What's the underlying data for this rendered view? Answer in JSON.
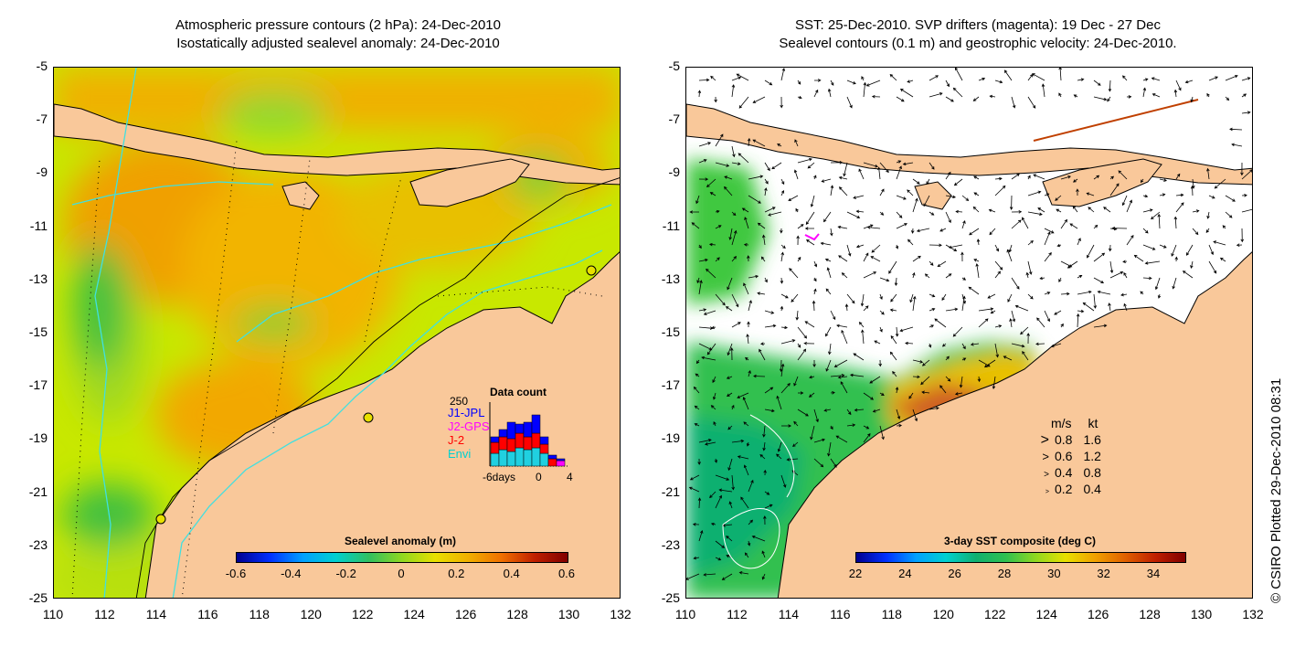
{
  "left_panel": {
    "title_line1": "Atmospheric pressure contours (2 hPa): 24-Dec-2010",
    "title_line2": "Isostatically adjusted sealevel anomaly: 24-Dec-2010",
    "colorbar": {
      "label": "Sealevel anomaly (m)",
      "ticks": [
        "-0.6",
        "-0.4",
        "-0.2",
        "0",
        "0.2",
        "0.4",
        "0.6"
      ],
      "range": [
        -0.6,
        0.6
      ]
    },
    "data_count": {
      "title": "Data count",
      "ymax": "250",
      "series": [
        {
          "name": "J1-JPL",
          "color": "#0000ff"
        },
        {
          "name": "J2-GPS",
          "color": "#ff00ff"
        },
        {
          "name": "J-2",
          "color": "#ff0000"
        },
        {
          "name": "Envi",
          "color": "#00d0d0"
        }
      ],
      "x_start": "-6days",
      "x_mid": "0",
      "x_end": "4"
    }
  },
  "right_panel": {
    "title_line1": "SST: 25-Dec-2010. SVP drifters (magenta): 19 Dec - 27 Dec",
    "title_line2": "Sealevel contours (0.1 m) and geostrophic velocity: 24-Dec-2010.",
    "colorbar": {
      "label": "3-day SST composite (deg C)",
      "ticks": [
        "22",
        "24",
        "26",
        "28",
        "30",
        "32",
        "34"
      ],
      "range": [
        22,
        35
      ]
    },
    "velocity_legend": {
      "header_ms": "m/s",
      "header_kt": "kt",
      "rows": [
        {
          "ms": "0.8",
          "kt": "1.6"
        },
        {
          "ms": "0.6",
          "kt": "1.2"
        },
        {
          "ms": "0.4",
          "kt": "0.8"
        },
        {
          "ms": "0.2",
          "kt": "0.4"
        }
      ]
    }
  },
  "axes": {
    "lat_ticks": [
      "-5",
      "-7",
      "-9",
      "-11",
      "-13",
      "-15",
      "-17",
      "-19",
      "-21",
      "-23",
      "-25"
    ],
    "lon_ticks": [
      "110",
      "112",
      "114",
      "116",
      "118",
      "120",
      "122",
      "124",
      "126",
      "128",
      "130",
      "132"
    ]
  },
  "credit": "© CSIRO Plotted 29-Dec-2010 08:31",
  "colors": {
    "land": "#f9c89a",
    "contour_cyan": "#40e0e0",
    "anomaly_base": "#d8f000",
    "anomaly_orange": "#f4a800",
    "anomaly_green": "#40c840"
  }
}
